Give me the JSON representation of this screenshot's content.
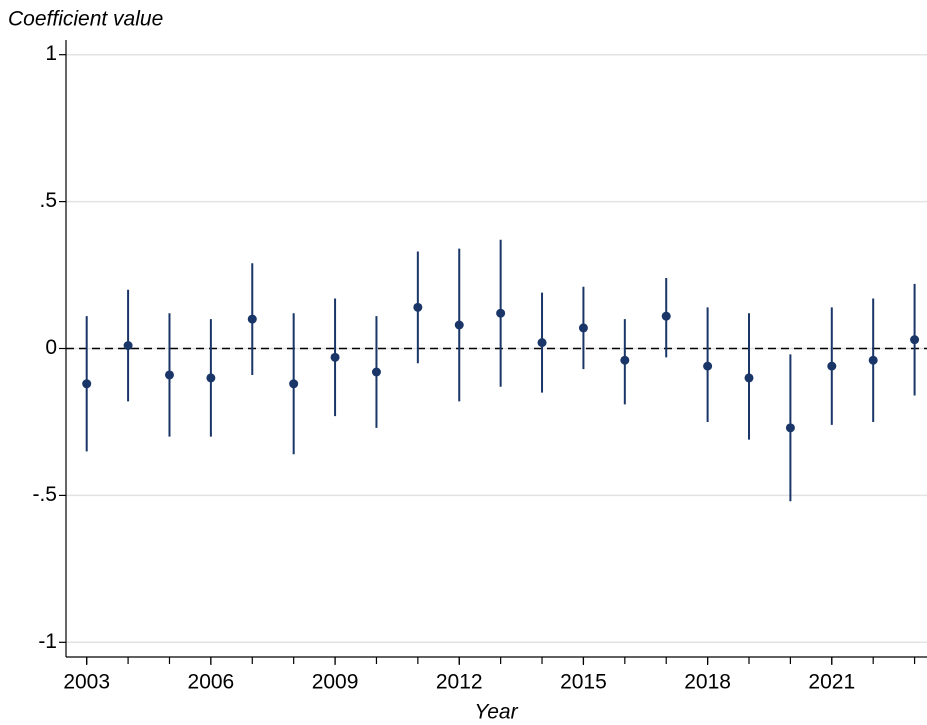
{
  "chart_data": {
    "type": "errorbar",
    "title": "Coefficient value",
    "x_label": "Year",
    "x": [
      2003,
      2004,
      2005,
      2006,
      2007,
      2008,
      2009,
      2010,
      2011,
      2012,
      2013,
      2014,
      2015,
      2016,
      2017,
      2018,
      2019,
      2020,
      2021,
      2022,
      2023
    ],
    "values": [
      -0.12,
      0.01,
      -0.09,
      -0.1,
      0.1,
      -0.12,
      -0.03,
      -0.08,
      0.14,
      0.08,
      0.12,
      0.02,
      0.07,
      -0.04,
      0.11,
      -0.06,
      -0.1,
      -0.27,
      -0.06,
      -0.04,
      0.03
    ],
    "lower": [
      -0.35,
      -0.18,
      -0.3,
      -0.3,
      -0.09,
      -0.36,
      -0.23,
      -0.27,
      -0.05,
      -0.18,
      -0.13,
      -0.15,
      -0.07,
      -0.19,
      -0.03,
      -0.25,
      -0.31,
      -0.52,
      -0.26,
      -0.25,
      -0.16
    ],
    "upper": [
      0.11,
      0.2,
      0.12,
      0.1,
      0.29,
      0.12,
      0.17,
      0.11,
      0.33,
      0.34,
      0.37,
      0.19,
      0.21,
      0.1,
      0.24,
      0.14,
      0.12,
      -0.02,
      0.14,
      0.17,
      0.22
    ],
    "color": "#1a3668",
    "xlim": [
      2002.5,
      2023.3
    ],
    "xticks": [
      2003,
      2006,
      2009,
      2012,
      2015,
      2018,
      2021
    ],
    "ylim": [
      -1.05,
      1.05
    ],
    "yticks": [
      -1,
      {
        "value": -0.5,
        "label": "-.5"
      },
      0,
      {
        "value": 0.5,
        "label": ".5"
      },
      1
    ],
    "hline": 0,
    "grid": true
  }
}
